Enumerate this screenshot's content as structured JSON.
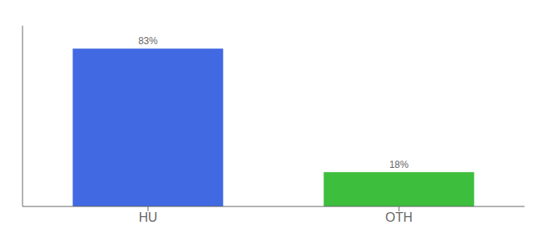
{
  "chart_data": {
    "type": "bar",
    "categories": [
      "HU",
      "OTH"
    ],
    "values": [
      83,
      18
    ],
    "value_labels": [
      "83%",
      "18%"
    ],
    "colors": [
      "#4169e1",
      "#3dbe3d"
    ],
    "ylim": [
      0,
      95
    ],
    "tick_labels": "x",
    "data_labels": true,
    "grid": false
  }
}
